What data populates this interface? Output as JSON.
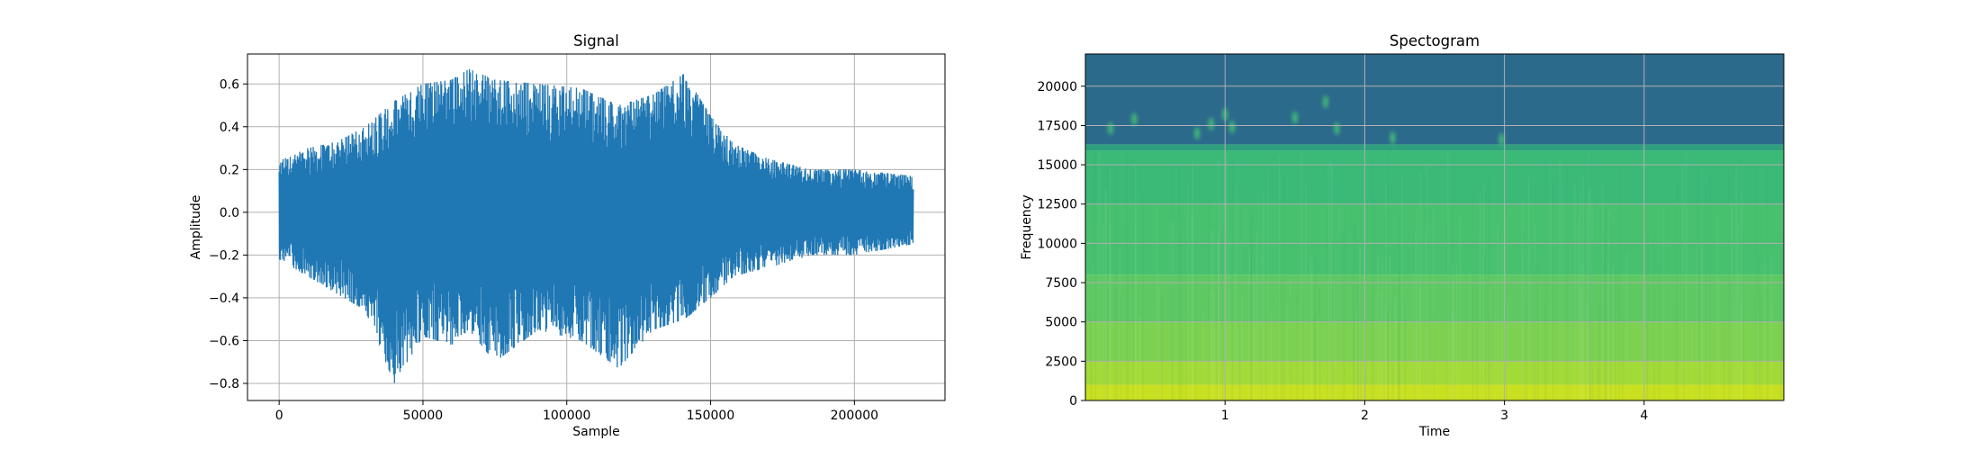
{
  "chart_data": [
    {
      "type": "line",
      "title": "Signal",
      "xlabel": "Sample",
      "ylabel": "Amplitude",
      "xlim": [
        -11000,
        231500
      ],
      "ylim": [
        -0.88,
        0.74
      ],
      "x_ticks": [
        0,
        50000,
        100000,
        150000,
        200000
      ],
      "x_tick_labels": [
        "0",
        "50000",
        "100000",
        "150000",
        "200000"
      ],
      "y_ticks": [
        -0.8,
        -0.6,
        -0.4,
        -0.2,
        0.0,
        0.2,
        0.4,
        0.6
      ],
      "y_tick_labels": [
        "−0.8",
        "−0.6",
        "−0.4",
        "−0.2",
        "0.0",
        "0.2",
        "0.4",
        "0.6"
      ],
      "grid": true,
      "color": "#1f77b4",
      "x_range": [
        0,
        220500
      ],
      "envelope": [
        {
          "x": 0,
          "max": 0.24,
          "min": -0.22
        },
        {
          "x": 10000,
          "max": 0.3,
          "min": -0.3
        },
        {
          "x": 20000,
          "max": 0.33,
          "min": -0.38
        },
        {
          "x": 30000,
          "max": 0.4,
          "min": -0.46
        },
        {
          "x": 40000,
          "max": 0.52,
          "min": -0.8
        },
        {
          "x": 50000,
          "max": 0.6,
          "min": -0.58
        },
        {
          "x": 60000,
          "max": 0.62,
          "min": -0.62
        },
        {
          "x": 66000,
          "max": 0.67,
          "min": -0.55
        },
        {
          "x": 75000,
          "max": 0.62,
          "min": -0.7
        },
        {
          "x": 90000,
          "max": 0.6,
          "min": -0.55
        },
        {
          "x": 105000,
          "max": 0.58,
          "min": -0.6
        },
        {
          "x": 118000,
          "max": 0.5,
          "min": -0.73
        },
        {
          "x": 130000,
          "max": 0.55,
          "min": -0.55
        },
        {
          "x": 141000,
          "max": 0.65,
          "min": -0.5
        },
        {
          "x": 150000,
          "max": 0.45,
          "min": -0.4
        },
        {
          "x": 158000,
          "max": 0.32,
          "min": -0.3
        },
        {
          "x": 170000,
          "max": 0.25,
          "min": -0.26
        },
        {
          "x": 185000,
          "max": 0.2,
          "min": -0.2
        },
        {
          "x": 200000,
          "max": 0.2,
          "min": -0.2
        },
        {
          "x": 220000,
          "max": 0.17,
          "min": -0.15
        }
      ]
    },
    {
      "type": "heatmap",
      "title": "Spectogram",
      "xlabel": "Time",
      "ylabel": "Frequency",
      "xlim": [
        0,
        5.0
      ],
      "ylim": [
        0,
        22050
      ],
      "x_ticks": [
        1,
        2,
        3,
        4
      ],
      "x_tick_labels": [
        "1",
        "2",
        "3",
        "4"
      ],
      "y_ticks": [
        0,
        2500,
        5000,
        7500,
        10000,
        12500,
        15000,
        17500,
        20000
      ],
      "y_tick_labels": [
        "0",
        "2500",
        "5000",
        "7500",
        "10000",
        "12500",
        "15000",
        "17500",
        "20000"
      ],
      "grid": true,
      "colormap": "viridis",
      "cutoff_frequency": 16000,
      "bands": [
        {
          "from": 0,
          "to": 1000,
          "color": "#c8e020"
        },
        {
          "from": 1000,
          "to": 2500,
          "color": "#a2da37"
        },
        {
          "from": 2500,
          "to": 5000,
          "color": "#7cd250"
        },
        {
          "from": 5000,
          "to": 8000,
          "color": "#5ec962"
        },
        {
          "from": 8000,
          "to": 12500,
          "color": "#48c16e"
        },
        {
          "from": 12500,
          "to": 15900,
          "color": "#3aba76"
        },
        {
          "from": 15900,
          "to": 16300,
          "color": "#2fa07d"
        },
        {
          "from": 16300,
          "to": 22050,
          "color": "#2c6a8c"
        }
      ],
      "blips": [
        {
          "t": 0.18,
          "f": 17300
        },
        {
          "t": 0.35,
          "f": 17900
        },
        {
          "t": 0.8,
          "f": 17000
        },
        {
          "t": 0.9,
          "f": 17600
        },
        {
          "t": 1.0,
          "f": 18200
        },
        {
          "t": 1.05,
          "f": 17400
        },
        {
          "t": 1.5,
          "f": 18000
        },
        {
          "t": 1.72,
          "f": 19000
        },
        {
          "t": 1.8,
          "f": 17300
        },
        {
          "t": 2.2,
          "f": 16700
        },
        {
          "t": 2.98,
          "f": 16600
        }
      ]
    }
  ]
}
